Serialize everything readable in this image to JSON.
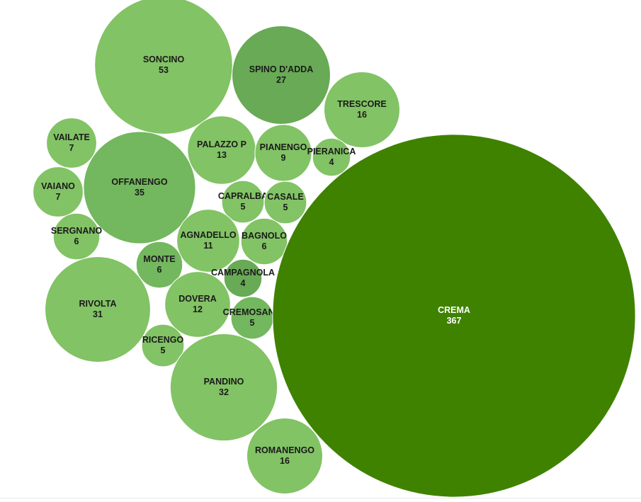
{
  "chart_data": {
    "type": "bubble",
    "colors": {
      "light": "#82c365",
      "medium": "#73b75e",
      "dark": "#68aa55",
      "highlight": "#3f8200",
      "stroke": "#ffffff",
      "label_dark": "#1a1a1a",
      "label_light": "#ffffff"
    },
    "bubbles": [
      {
        "name": "SONCINO",
        "value": 53,
        "shade": "light"
      },
      {
        "name": "SPINO D'ADDA",
        "value": 27,
        "shade": "dark"
      },
      {
        "name": "TRESCORE",
        "value": 16,
        "shade": "light"
      },
      {
        "name": "VAILATE",
        "value": 7,
        "shade": "light"
      },
      {
        "name": "OFFANENGO",
        "value": 35,
        "shade": "medium"
      },
      {
        "name": "PALAZZO P",
        "value": 13,
        "shade": "light"
      },
      {
        "name": "PIANENGO",
        "value": 9,
        "shade": "light"
      },
      {
        "name": "PIERANICA",
        "value": 4,
        "shade": "light"
      },
      {
        "name": "VAIANO",
        "value": 7,
        "shade": "light"
      },
      {
        "name": "CAPRALBA",
        "value": 5,
        "shade": "light"
      },
      {
        "name": "CASALE",
        "value": 5,
        "shade": "light"
      },
      {
        "name": "SERGNANO",
        "value": 6,
        "shade": "light"
      },
      {
        "name": "AGNADELLO",
        "value": 11,
        "shade": "light"
      },
      {
        "name": "BAGNOLO",
        "value": 6,
        "shade": "light"
      },
      {
        "name": "MONTE",
        "value": 6,
        "shade": "medium"
      },
      {
        "name": "CAMPAGNOLA",
        "value": 4,
        "shade": "dark"
      },
      {
        "name": "RIVOLTA",
        "value": 31,
        "shade": "light"
      },
      {
        "name": "DOVERA",
        "value": 12,
        "shade": "light"
      },
      {
        "name": "CREMOSANO",
        "value": 5,
        "shade": "medium"
      },
      {
        "name": "RICENGO",
        "value": 5,
        "shade": "light"
      },
      {
        "name": "PANDINO",
        "value": 32,
        "shade": "light"
      },
      {
        "name": "ROMANENGO",
        "value": 16,
        "shade": "light"
      },
      {
        "name": "CREMA",
        "value": 367,
        "shade": "highlight"
      }
    ]
  }
}
